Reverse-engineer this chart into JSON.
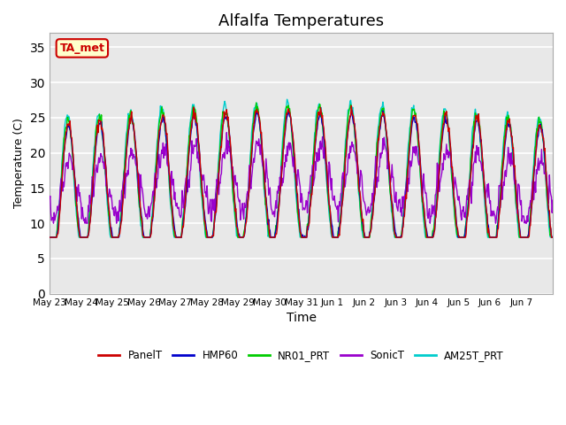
{
  "title": "Alfalfa Temperatures",
  "xlabel": "Time",
  "ylabel": "Temperature (C)",
  "ylim": [
    0,
    37
  ],
  "yticks": [
    0,
    5,
    10,
    15,
    20,
    25,
    30,
    35
  ],
  "date_labels": [
    "May 23",
    "May 24",
    "May 25",
    "May 26",
    "May 27",
    "May 28",
    "May 29",
    "May 30",
    "May 31",
    "Jun 1",
    "Jun 2",
    "Jun 3",
    "Jun 4",
    "Jun 5",
    "Jun 6",
    "Jun 7"
  ],
  "series_names": [
    "PanelT",
    "HMP60",
    "NR01_PRT",
    "SonicT",
    "AM25T_PRT"
  ],
  "series_colors": [
    "#cc0000",
    "#0000cc",
    "#00cc00",
    "#9900cc",
    "#00cccc"
  ],
  "annotation_text": "TA_met",
  "annotation_color": "#cc0000",
  "annotation_bg": "#ffffcc",
  "background_plot": "#e8e8e8",
  "background_fig": "#ffffff",
  "grid_color": "#ffffff",
  "title_fontsize": 13,
  "n_days": 16
}
